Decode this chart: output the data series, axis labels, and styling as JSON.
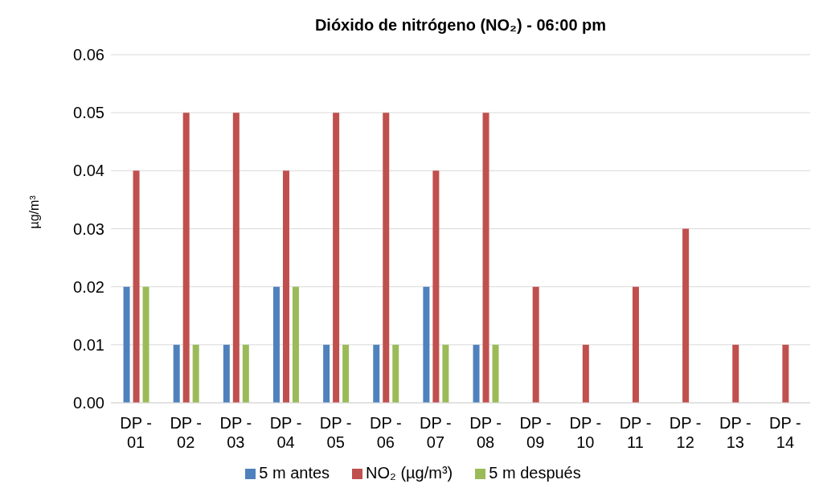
{
  "chart_data": {
    "type": "bar",
    "title": "Dióxido de nitrógeno (NO₂) - 06:00 pm",
    "ylabel": "µg/m³",
    "categories": [
      "DP - 01",
      "DP - 02",
      "DP - 03",
      "DP - 04",
      "DP - 05",
      "DP - 06",
      "DP - 07",
      "DP - 08",
      "DP - 09",
      "DP - 10",
      "DP - 11",
      "DP - 12",
      "DP - 13",
      "DP - 14"
    ],
    "series": [
      {
        "name": "5 m antes",
        "color": "#4f81bd",
        "values": [
          0.02,
          0.01,
          0.01,
          0.02,
          0.01,
          0.01,
          0.02,
          0.01,
          null,
          null,
          null,
          null,
          null,
          null
        ]
      },
      {
        "name": "NO₂ (µg/m³)",
        "color": "#c0504d",
        "values": [
          0.04,
          0.05,
          0.05,
          0.04,
          0.05,
          0.05,
          0.04,
          0.05,
          0.02,
          0.01,
          0.02,
          0.03,
          0.01,
          0.01
        ]
      },
      {
        "name": "5 m después",
        "color": "#9bbb59",
        "values": [
          0.02,
          0.01,
          0.01,
          0.02,
          0.01,
          0.01,
          0.01,
          0.01,
          null,
          null,
          null,
          null,
          null,
          null
        ]
      }
    ],
    "ylim": [
      0,
      0.06
    ],
    "yticks": [
      {
        "value": 0,
        "label": "0.00"
      },
      0.01,
      0.02,
      0.03,
      0.04,
      0.05,
      0.06
    ],
    "grid": "y",
    "legend": "bottom"
  }
}
